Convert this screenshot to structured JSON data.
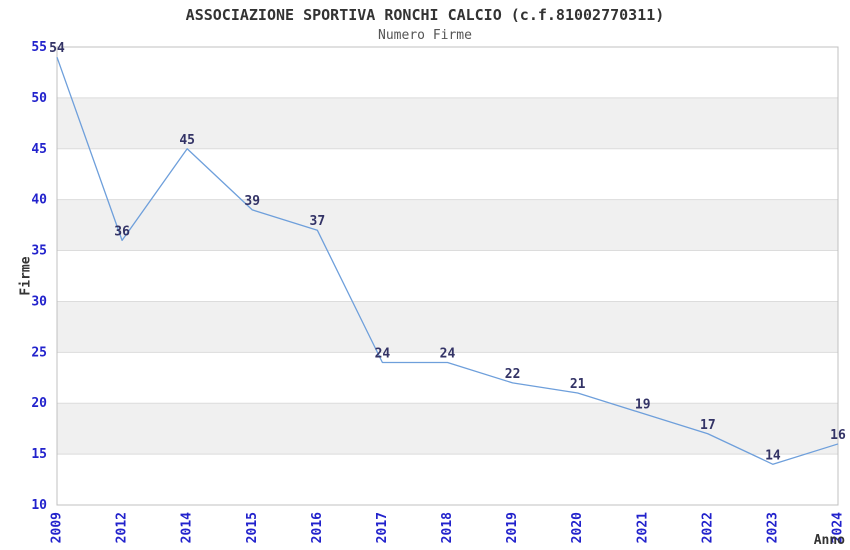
{
  "chart_data": {
    "type": "line",
    "title": "ASSOCIAZIONE SPORTIVA RONCHI CALCIO (c.f.81002770311)",
    "subtitle": "Numero Firme",
    "xlabel": "Anno",
    "ylabel": "Firme",
    "categories": [
      "2009",
      "2012",
      "2014",
      "2015",
      "2016",
      "2017",
      "2018",
      "2019",
      "2020",
      "2021",
      "2022",
      "2023",
      "2024"
    ],
    "values": [
      54,
      36,
      45,
      39,
      37,
      24,
      24,
      22,
      21,
      19,
      17,
      14,
      16
    ],
    "ylim": [
      10,
      55
    ],
    "ytick_step": 5,
    "grid": true,
    "legend_position": "none",
    "band_style": "alternating horizontal bands of 5 units (gray at 15-20, 25-30, 35-40, 45-50)",
    "x_tick_rotation_deg": 90,
    "colors": {
      "line": "#6E9FDB",
      "tick_label": "#2222CC",
      "value_label": "#333366",
      "axis_label": "#333333",
      "title": "#333333",
      "subtitle": "#555555",
      "band": "#F0F0F0",
      "grid": "#DCDCDC",
      "border": "#C0C0C0",
      "background": "#FFFFFF"
    }
  }
}
